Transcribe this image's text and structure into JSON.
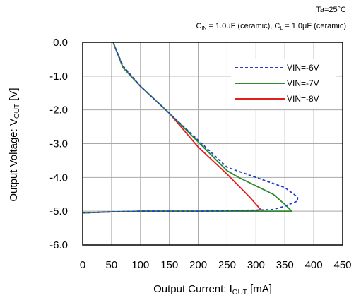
{
  "chart_data": {
    "type": "line",
    "conditions": {
      "temperature": "Ta=25°C",
      "cin_main": "C",
      "cin_sub": "IN",
      "cin_value": " = 1.0μF (ceramic), ",
      "cl_main": "C",
      "cl_sub": "L",
      "cl_value": " = 1.0μF (ceramic)"
    },
    "xlabel": {
      "main": "Output Current: I",
      "sub": "OUT",
      "unit": " [mA]"
    },
    "ylabel": {
      "main": "Output Voltage: V",
      "sub": "OUT",
      "unit": " [V]"
    },
    "xlim": [
      0,
      450
    ],
    "ylim": [
      -6.0,
      0.0
    ],
    "x_ticks": [
      "0",
      "50",
      "100",
      "150",
      "200",
      "250",
      "300",
      "350",
      "400",
      "450"
    ],
    "x_tick_values": [
      0,
      50,
      100,
      150,
      200,
      250,
      300,
      350,
      400,
      450
    ],
    "y_ticks": [
      "0.0",
      "-1.0",
      "-2.0",
      "-3.0",
      "-4.0",
      "-5.0",
      "-6.0"
    ],
    "y_tick_values": [
      0,
      -1,
      -2,
      -3,
      -4,
      -5,
      -6
    ],
    "grid": true,
    "legend_position": "top-right",
    "series": [
      {
        "name": "VIN=-6V",
        "color": "#1f3fcf",
        "dash": "dotted",
        "points": [
          [
            0,
            -5.05
          ],
          [
            50,
            -5.02
          ],
          [
            100,
            -5.0
          ],
          [
            200,
            -5.0
          ],
          [
            250,
            -4.98
          ],
          [
            300,
            -4.97
          ],
          [
            330,
            -4.95
          ],
          [
            350,
            -4.85
          ],
          [
            372,
            -4.7
          ],
          [
            372,
            -4.58
          ],
          [
            350,
            -4.3
          ],
          [
            300,
            -4.0
          ],
          [
            250,
            -3.7
          ],
          [
            150,
            -2.1
          ],
          [
            100,
            -1.3
          ],
          [
            70,
            -0.7
          ],
          [
            55,
            -0.1
          ],
          [
            53,
            0.0
          ]
        ]
      },
      {
        "name": "VIN=-7V",
        "color": "#2e8b2e",
        "dash": "solid",
        "points": [
          [
            0,
            -5.05
          ],
          [
            50,
            -5.02
          ],
          [
            100,
            -5.0
          ],
          [
            200,
            -5.0
          ],
          [
            250,
            -5.0
          ],
          [
            300,
            -5.0
          ],
          [
            340,
            -5.0
          ],
          [
            362,
            -5.0
          ],
          [
            350,
            -4.8
          ],
          [
            330,
            -4.5
          ],
          [
            300,
            -4.25
          ],
          [
            270,
            -4.0
          ],
          [
            250,
            -3.8
          ],
          [
            150,
            -2.1
          ],
          [
            100,
            -1.3
          ],
          [
            70,
            -0.75
          ],
          [
            55,
            -0.1
          ],
          [
            53,
            0.0
          ]
        ]
      },
      {
        "name": "VIN=-8V",
        "color": "#e0201e",
        "dash": "solid",
        "points": [
          [
            0,
            -5.05
          ],
          [
            50,
            -5.02
          ],
          [
            100,
            -5.0
          ],
          [
            200,
            -5.0
          ],
          [
            250,
            -5.0
          ],
          [
            300,
            -4.98
          ],
          [
            308,
            -4.95
          ],
          [
            290,
            -4.6
          ],
          [
            270,
            -4.25
          ],
          [
            250,
            -3.9
          ],
          [
            200,
            -3.1
          ],
          [
            150,
            -2.1
          ],
          [
            100,
            -1.3
          ],
          [
            70,
            -0.75
          ],
          [
            55,
            -0.1
          ],
          [
            53,
            0.0
          ]
        ]
      }
    ]
  }
}
